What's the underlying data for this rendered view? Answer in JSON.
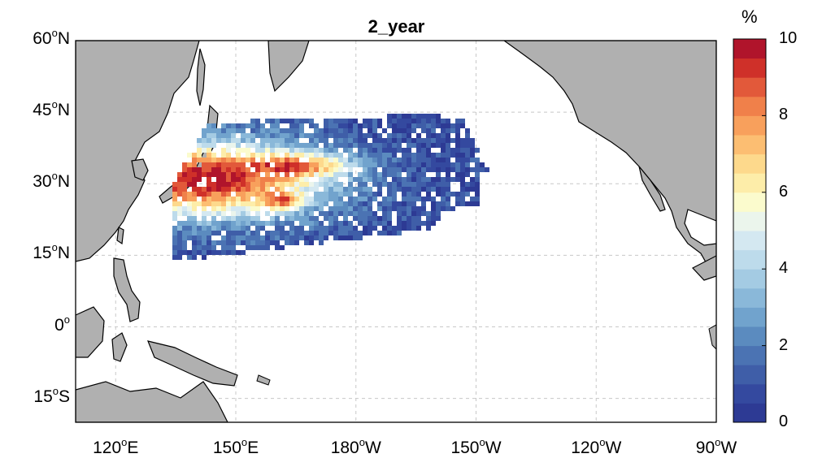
{
  "map": {
    "title": "2_year",
    "lat_labels": [
      {
        "deg": "60",
        "hemi": "N",
        "lat": 60
      },
      {
        "deg": "45",
        "hemi": "N",
        "lat": 45
      },
      {
        "deg": "30",
        "hemi": "N",
        "lat": 30
      },
      {
        "deg": "15",
        "hemi": "N",
        "lat": 15
      },
      {
        "deg": "0",
        "hemi": "",
        "lat": 0
      },
      {
        "deg": "15",
        "hemi": "S",
        "lat": -15
      }
    ],
    "lon_labels": [
      {
        "deg": "120",
        "hemi": "E",
        "lon": 120
      },
      {
        "deg": "150",
        "hemi": "E",
        "lon": 150
      },
      {
        "deg": "180",
        "hemi": "W",
        "lon": 180
      },
      {
        "deg": "150",
        "hemi": "W",
        "lon": 210
      },
      {
        "deg": "120",
        "hemi": "W",
        "lon": 240
      },
      {
        "deg": "90",
        "hemi": "W",
        "lon": 270
      }
    ],
    "lon_range": [
      110,
      270
    ],
    "lat_range": [
      -20,
      60
    ],
    "grid": true,
    "land_color": "#b0b0b0",
    "ocean_color": "#ffffff"
  },
  "colorbar": {
    "unit": "%",
    "ticks": [
      "0",
      "2",
      "4",
      "6",
      "8",
      "10"
    ],
    "range": [
      0,
      10
    ],
    "colors": [
      "#2d3a94",
      "#34499f",
      "#3f5ea8",
      "#4b73b3",
      "#5b8bbf",
      "#71a3cd",
      "#8ab8d9",
      "#a4cbe3",
      "#bddbeb",
      "#d4e8f1",
      "#ebf5ec",
      "#fbfbcd",
      "#fdeda9",
      "#fdd98c",
      "#fcbe72",
      "#f8a05c",
      "#f0804a",
      "#e2593a",
      "#cf3029",
      "#b0142b"
    ]
  }
}
